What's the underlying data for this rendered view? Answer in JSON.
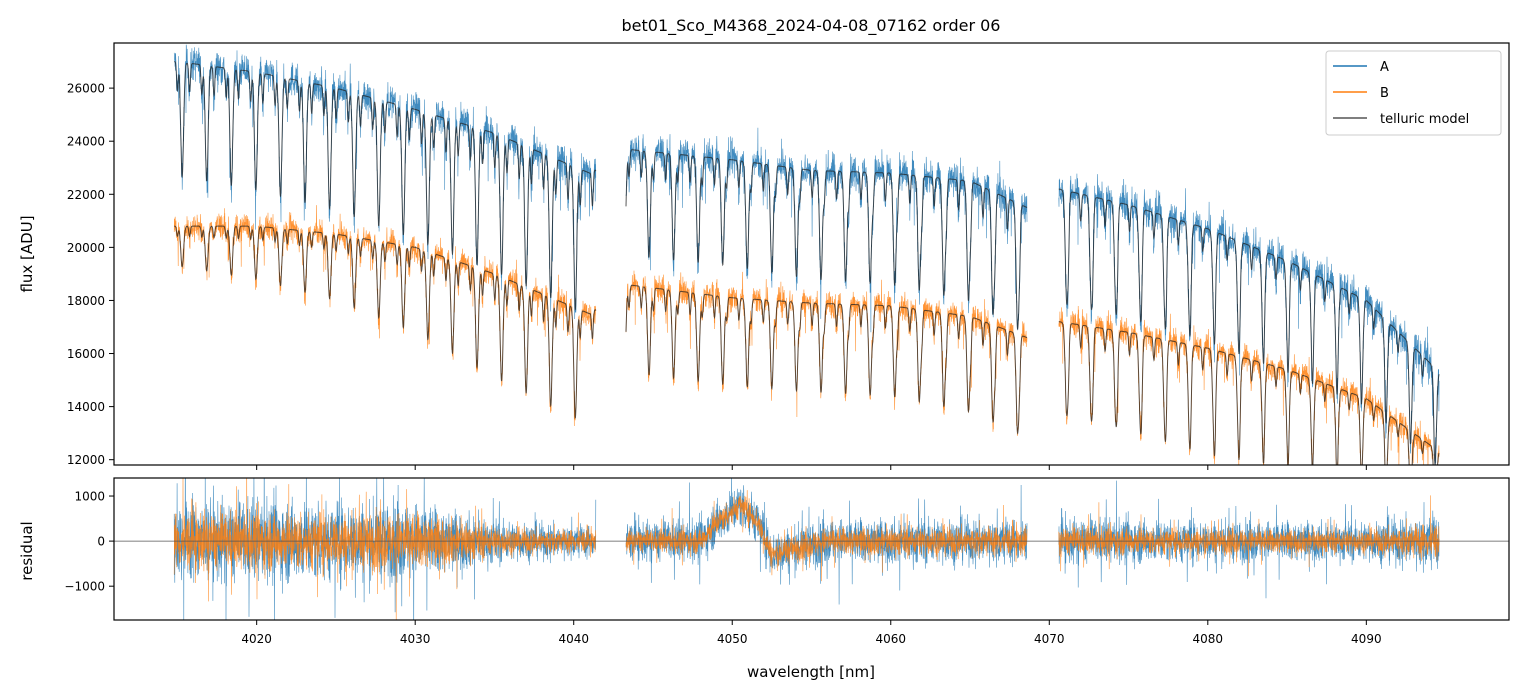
{
  "chart_data": {
    "type": "line",
    "title": "bet01_Sco_M4368_2024-04-08_07162  order 06",
    "xlabel": "wavelength [nm]",
    "xlim": [
      4011,
      4099
    ],
    "xticks": [
      4020,
      4030,
      4040,
      4050,
      4060,
      4070,
      4080,
      4090
    ],
    "xtick_labels": [
      "4020",
      "4030",
      "4040",
      "4050",
      "4060",
      "4070",
      "4080",
      "4090"
    ],
    "colors": {
      "A": "#1f77b4",
      "B": "#ff7f0e",
      "telluric": "#555555",
      "zero_line": "#555555"
    },
    "gaps": [
      [
        4041.4,
        4043.3
      ],
      [
        4068.6,
        4070.6
      ]
    ],
    "wave_range": [
      4014.8,
      4094.6
    ],
    "top_panel": {
      "ylabel": "flux [ADU]",
      "ylim": [
        11800,
        27700
      ],
      "yticks": [
        12000,
        14000,
        16000,
        18000,
        20000,
        22000,
        24000,
        26000
      ],
      "ytick_labels": [
        "12000",
        "14000",
        "16000",
        "18000",
        "20000",
        "22000",
        "24000",
        "26000"
      ],
      "legend": {
        "position": "top-right",
        "entries": [
          "A",
          "B",
          "telluric model"
        ]
      },
      "series": [
        {
          "name": "A",
          "continuum": [
            [
              4015,
              27000
            ],
            [
              4020,
              26600
            ],
            [
              4025,
              26000
            ],
            [
              4030,
              25200
            ],
            [
              4035,
              24300
            ],
            [
              4041,
              22800
            ],
            [
              4043.3,
              23700
            ],
            [
              4050,
              23300
            ],
            [
              4055,
              22900
            ],
            [
              4060,
              22800
            ],
            [
              4065,
              22500
            ],
            [
              4068.6,
              21500
            ],
            [
              4070.6,
              22200
            ],
            [
              4075,
              21600
            ],
            [
              4080,
              20700
            ],
            [
              4085,
              19500
            ],
            [
              4090,
              18000
            ],
            [
              4094.6,
              15300
            ]
          ],
          "line_depth": [
            [
              4015,
              4300
            ],
            [
              4025,
              4600
            ],
            [
              4035,
              5200
            ],
            [
              4041,
              5400
            ],
            [
              4043.3,
              4000
            ],
            [
              4050,
              4000
            ],
            [
              4060,
              4200
            ],
            [
              4068,
              4700
            ],
            [
              4070.6,
              4200
            ],
            [
              4080,
              3600
            ],
            [
              4090,
              3200
            ],
            [
              4094.6,
              3000
            ]
          ],
          "noise": 850
        },
        {
          "name": "B",
          "continuum": [
            [
              4015,
              20800
            ],
            [
              4020,
              20800
            ],
            [
              4025,
              20500
            ],
            [
              4030,
              20000
            ],
            [
              4035,
              19000
            ],
            [
              4041,
              17500
            ],
            [
              4043.3,
              18600
            ],
            [
              4050,
              18100
            ],
            [
              4055,
              17900
            ],
            [
              4060,
              17800
            ],
            [
              4065,
              17400
            ],
            [
              4068.6,
              16600
            ],
            [
              4070.6,
              17200
            ],
            [
              4075,
              16800
            ],
            [
              4080,
              16200
            ],
            [
              4085,
              15400
            ],
            [
              4090,
              14300
            ],
            [
              4094.6,
              12300
            ]
          ],
          "line_depth": [
            [
              4015,
              1500
            ],
            [
              4025,
              2500
            ],
            [
              4035,
              3900
            ],
            [
              4041,
              4200
            ],
            [
              4043.3,
              3300
            ],
            [
              4050,
              3300
            ],
            [
              4060,
              3400
            ],
            [
              4068,
              3700
            ],
            [
              4070.6,
              3400
            ],
            [
              4080,
              3400
            ],
            [
              4090,
              2500
            ],
            [
              4094.6,
              2000
            ]
          ],
          "noise": 650
        }
      ]
    },
    "bottom_panel": {
      "ylabel": "residual",
      "ylim": [
        -1750,
        1400
      ],
      "yticks": [
        -1000,
        0,
        1000
      ],
      "ytick_labels": [
        "−1000",
        "0",
        "1000"
      ],
      "zero_line": 0,
      "residual_amplitude": {
        "A": [
          [
            4015,
            1300
          ],
          [
            4030,
            1200
          ],
          [
            4036,
            600
          ],
          [
            4041,
            500
          ],
          [
            4043.3,
            600
          ],
          [
            4050,
            700
          ],
          [
            4053,
            700
          ],
          [
            4060,
            700
          ],
          [
            4068.6,
            700
          ],
          [
            4070.6,
            700
          ],
          [
            4080,
            650
          ],
          [
            4090,
            600
          ],
          [
            4094.6,
            900
          ]
        ],
        "B": [
          [
            4015,
            900
          ],
          [
            4030,
            900
          ],
          [
            4036,
            400
          ],
          [
            4041,
            350
          ],
          [
            4043.3,
            350
          ],
          [
            4050,
            400
          ],
          [
            4060,
            450
          ],
          [
            4068.6,
            450
          ],
          [
            4070.6,
            450
          ],
          [
            4080,
            400
          ],
          [
            4090,
            350
          ],
          [
            4094.6,
            600
          ]
        ]
      },
      "residual_offset": [
        [
          4043.3,
          0
        ],
        [
          4048,
          0
        ],
        [
          4049,
          400
        ],
        [
          4050.5,
          800
        ],
        [
          4051.5,
          500
        ],
        [
          4052.5,
          -300
        ],
        [
          4054,
          -150
        ],
        [
          4056,
          0
        ]
      ]
    }
  }
}
